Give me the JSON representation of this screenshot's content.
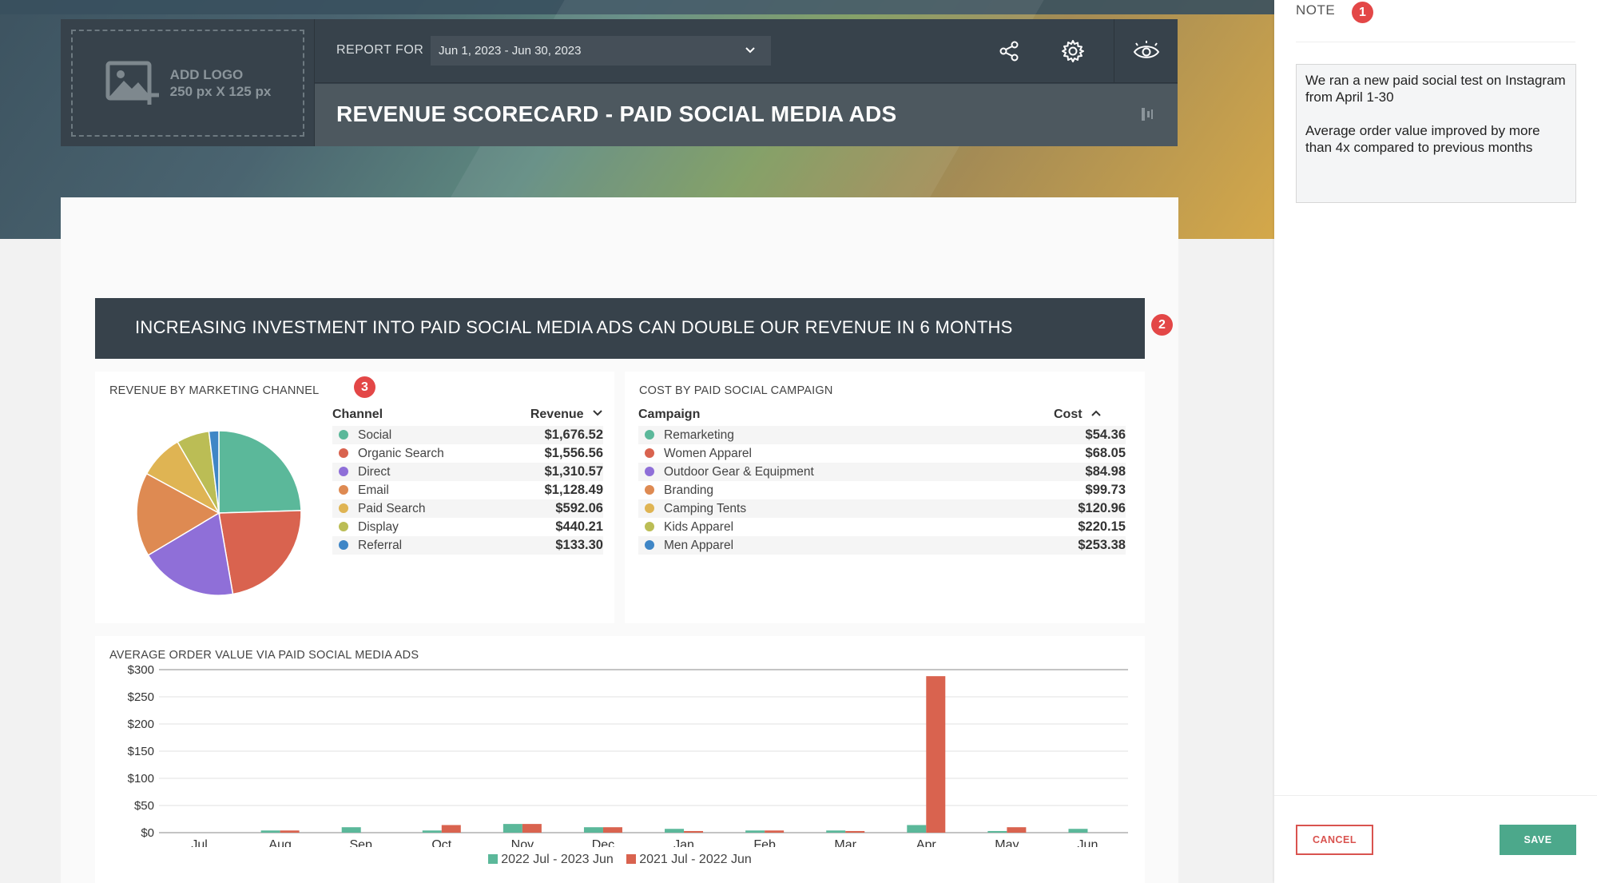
{
  "header": {
    "add_logo": "ADD LOGO",
    "logo_size": "250 px X 125 px",
    "report_for_label": "REPORT FOR",
    "date_range": "Jun 1, 2023 - Jun 30, 2023",
    "title": "REVENUE SCORECARD - PAID SOCIAL MEDIA ADS"
  },
  "insight": {
    "text": "INCREASING INVESTMENT INTO PAID SOCIAL MEDIA ADS CAN DOUBLE OUR REVENUE IN 6 MONTHS",
    "badge": "2"
  },
  "revenue_widget": {
    "title": "REVENUE BY MARKETING CHANNEL",
    "badge": "3",
    "col_channel": "Channel",
    "col_revenue": "Revenue",
    "rows": [
      {
        "name": "Social",
        "value": "$1,676.52"
      },
      {
        "name": "Organic Search",
        "value": "$1,556.56"
      },
      {
        "name": "Direct",
        "value": "$1,310.57"
      },
      {
        "name": "Email",
        "value": "$1,128.49"
      },
      {
        "name": "Paid Search",
        "value": "$592.06"
      },
      {
        "name": "Display",
        "value": "$440.21"
      },
      {
        "name": "Referral",
        "value": "$133.30"
      }
    ]
  },
  "cost_widget": {
    "title": "COST BY PAID SOCIAL CAMPAIGN",
    "col_campaign": "Campaign",
    "col_cost": "Cost",
    "rows": [
      {
        "name": "Remarketing",
        "value": "$54.36"
      },
      {
        "name": "Women Apparel",
        "value": "$68.05"
      },
      {
        "name": "Outdoor Gear & Equipment",
        "value": "$84.98"
      },
      {
        "name": "Branding",
        "value": "$99.73"
      },
      {
        "name": "Camping Tents",
        "value": "$120.96"
      },
      {
        "name": "Kids Apparel",
        "value": "$220.15"
      },
      {
        "name": "Men Apparel",
        "value": "$253.38"
      }
    ]
  },
  "aov_widget": {
    "title": "AVERAGE ORDER VALUE VIA PAID SOCIAL MEDIA ADS"
  },
  "note": {
    "label": "NOTE",
    "badge": "1",
    "text": "We ran a new paid social test on Instagram from April 1-30\n\nAverage order value improved by more than 4x compared to previous months",
    "cancel": "CANCEL",
    "save": "SAVE"
  },
  "colors": {
    "social": "#5bb89a",
    "organic": "#d9634f",
    "direct": "#8f6fd8",
    "email": "#de8a52",
    "paid_search": "#dfb453",
    "display": "#bbbd55",
    "referral": "#3f86c6",
    "series_a": "#5bb89a",
    "series_b": "#d9634f",
    "badge": "#e34747",
    "save": "#4ca88b"
  },
  "chart_data": [
    {
      "type": "pie",
      "title": "REVENUE BY MARKETING CHANNEL",
      "categories": [
        "Social",
        "Organic Search",
        "Direct",
        "Email",
        "Paid Search",
        "Display",
        "Referral"
      ],
      "values": [
        1676.52,
        1556.56,
        1310.57,
        1128.49,
        592.06,
        440.21,
        133.3
      ]
    },
    {
      "type": "bar",
      "title": "AVERAGE ORDER VALUE VIA PAID SOCIAL MEDIA ADS",
      "categories": [
        "Jul",
        "Aug",
        "Sep",
        "Oct",
        "Nov",
        "Dec",
        "Jan",
        "Feb",
        "Mar",
        "Apr",
        "May",
        "Jun"
      ],
      "series": [
        {
          "name": "2022 Jul - 2023 Jun",
          "values": [
            0,
            4,
            10,
            4,
            16,
            10,
            7,
            4,
            4,
            14,
            3,
            7
          ]
        },
        {
          "name": "2021 Jul - 2022 Jun",
          "values": [
            0,
            4,
            0,
            14,
            16,
            10,
            3,
            4,
            3,
            288,
            10,
            0
          ]
        }
      ],
      "yticks": [
        "$0",
        "$50",
        "$100",
        "$150",
        "$200",
        "$250",
        "$300"
      ],
      "ylim": [
        0,
        300
      ],
      "legend": "bottom",
      "grid": true
    }
  ]
}
